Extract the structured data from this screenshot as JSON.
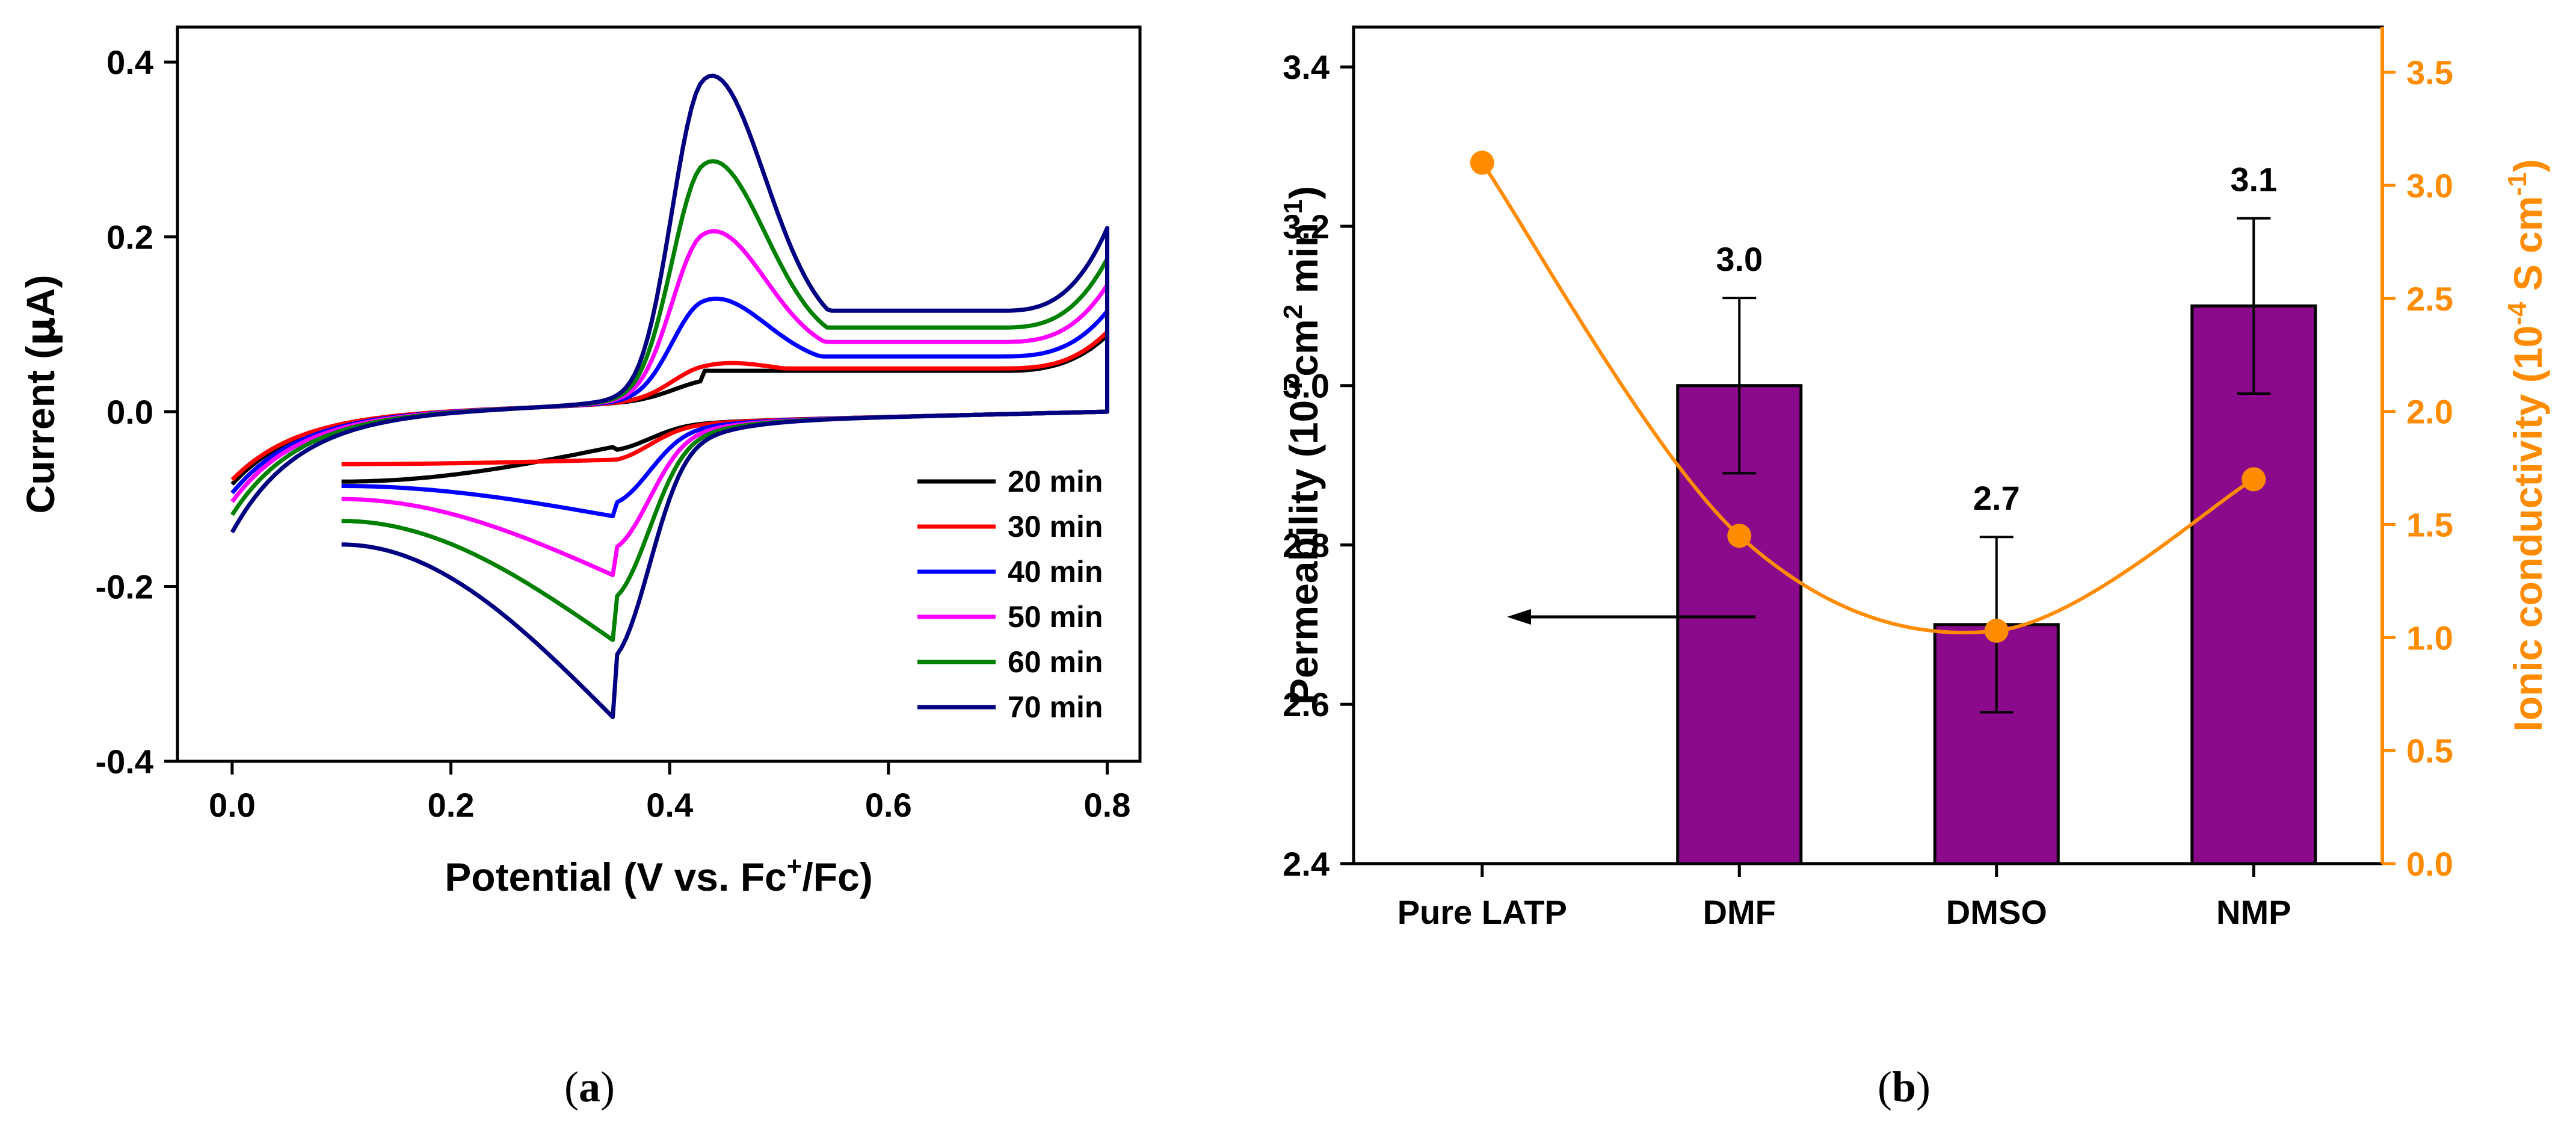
{
  "panels": {
    "a": {
      "caption": {
        "open": "(",
        "letter": "a",
        "close": ")"
      },
      "chart_data": {
        "type": "line",
        "xlabel": {
          "pre": "Potential (V vs. Fc",
          "sup": "+",
          "post": "/Fc)"
        },
        "ylabel": {
          "pre": "Current (",
          "mu": "µ",
          "post": "A)"
        },
        "xlim": [
          -0.05,
          0.83
        ],
        "ylim": [
          -0.4,
          0.44
        ],
        "xticks": [
          "0.0",
          "0.2",
          "0.4",
          "0.6",
          "0.8"
        ],
        "xtick_values": [
          0,
          0.2,
          0.4,
          0.6,
          0.8
        ],
        "yticks": [
          "-0.4",
          "-0.2",
          "0.0",
          "0.2",
          "0.4"
        ],
        "ytick_values": [
          -0.4,
          -0.2,
          0,
          0.2,
          0.4
        ],
        "legend_position": "bottom-right",
        "series": [
          {
            "name": "20 min",
            "color": "#000000",
            "forward_peak": [
              0.43,
              0.04
            ],
            "reverse_peak": [
              0.35,
              -0.04
            ],
            "start": [
              0.0,
              -0.08
            ],
            "end_high": 0.085,
            "break": [
              0.1,
              -0.08
            ]
          },
          {
            "name": "30 min",
            "color": "#ff0000",
            "forward_peak": [
              0.43,
              0.058
            ],
            "reverse_peak": [
              0.35,
              -0.055
            ],
            "start": [
              0.0,
              -0.075
            ],
            "end_high": 0.09,
            "break": [
              0.1,
              -0.06
            ]
          },
          {
            "name": "40 min",
            "color": "#0000ff",
            "forward_peak": [
              0.43,
              0.14
            ],
            "reverse_peak": [
              0.35,
              -0.12
            ],
            "start": [
              0.0,
              -0.09
            ],
            "end_high": 0.115,
            "break": [
              0.1,
              -0.085
            ]
          },
          {
            "name": "50 min",
            "color": "#ff00ff",
            "forward_peak": [
              0.43,
              0.225
            ],
            "reverse_peak": [
              0.35,
              -0.188
            ],
            "start": [
              0.0,
              -0.1
            ],
            "end_high": 0.145,
            "break": [
              0.1,
              -0.1
            ]
          },
          {
            "name": "60 min",
            "color": "#008000",
            "forward_peak": [
              0.43,
              0.313
            ],
            "reverse_peak": [
              0.35,
              -0.263
            ],
            "start": [
              0.0,
              -0.115
            ],
            "end_high": 0.175,
            "break": [
              0.1,
              -0.125
            ]
          },
          {
            "name": "70 min",
            "color": "#000080",
            "forward_peak": [
              0.43,
              0.42
            ],
            "reverse_peak": [
              0.35,
              -0.352
            ],
            "start": [
              0.0,
              -0.135
            ],
            "end_high": 0.21,
            "break": [
              0.1,
              -0.152
            ]
          }
        ]
      }
    },
    "b": {
      "caption": {
        "open": "(",
        "letter": "b",
        "close": ")"
      },
      "chart_data": {
        "type": "bar",
        "categories": [
          "Pure LATP",
          "DMF",
          "DMSO",
          "NMP"
        ],
        "series": [
          {
            "axis": "left",
            "kind": "bar",
            "values": [
              null,
              3.0,
              2.7,
              3.1
            ],
            "errors": [
              null,
              0.11,
              0.11,
              0.11
            ],
            "labels": [
              "",
              "3.0",
              "2.7",
              "3.1"
            ],
            "color": "#8b0a8b"
          },
          {
            "axis": "right",
            "kind": "line+markers",
            "values": [
              3.1,
              1.45,
              1.03,
              1.7
            ],
            "color": "#ff8c00"
          }
        ],
        "ylabel_left": {
          "pre": "Permeability (10",
          "sup1": "-7",
          "mid": "cm",
          "sup2": "2",
          "mid2": " min",
          "sup3": "-1",
          "post": ")"
        },
        "ylabel_right": {
          "pre": "Ionic conductivity (10",
          "sup1": "-4",
          "mid": " S cm",
          "sup2": "-1",
          "post": ")"
        },
        "ylim_left": [
          2.4,
          3.45
        ],
        "ylim_right": [
          0,
          3.7
        ],
        "yticks_left": [
          "2.4",
          "2.6",
          "2.8",
          "3.0",
          "3.2",
          "3.4"
        ],
        "ytick_values_left": [
          2.4,
          2.6,
          2.8,
          3.0,
          3.2,
          3.4
        ],
        "yticks_right": [
          "0.0",
          "0.5",
          "1.0",
          "1.5",
          "2.0",
          "2.5",
          "3.0",
          "3.5"
        ],
        "ytick_values_right": [
          0,
          0.5,
          1.0,
          1.5,
          2.0,
          2.5,
          3.0,
          3.5
        ],
        "axis_colors": {
          "left": "#000000",
          "right": "#ff8c00"
        },
        "arrow_direction": "left"
      }
    }
  }
}
